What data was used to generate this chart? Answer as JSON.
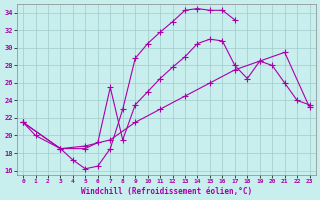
{
  "xlabel": "Windchill (Refroidissement éolien,°C)",
  "bg_color": "#c8eeee",
  "grid_color": "#a0cccc",
  "line_color": "#aa00aa",
  "xlim": [
    -0.5,
    23.5
  ],
  "ylim": [
    15.5,
    35.0
  ],
  "xticks": [
    0,
    1,
    2,
    3,
    4,
    5,
    6,
    7,
    8,
    9,
    10,
    11,
    12,
    13,
    14,
    15,
    16,
    17,
    18,
    19,
    20,
    21,
    22,
    23
  ],
  "yticks": [
    16,
    18,
    20,
    22,
    24,
    26,
    28,
    30,
    32,
    34
  ],
  "curve1_x": [
    0,
    1,
    3,
    4,
    5,
    6,
    7,
    8,
    9,
    10,
    11,
    12,
    13,
    14,
    15,
    16,
    17
  ],
  "curve1_y": [
    21.5,
    20.0,
    18.5,
    17.2,
    16.2,
    16.5,
    18.5,
    23.0,
    28.8,
    30.5,
    31.8,
    33.0,
    34.3,
    34.5,
    34.3,
    34.3,
    33.2
  ],
  "curve2_x": [
    0,
    3,
    5,
    6,
    7,
    8,
    9,
    10,
    11,
    12,
    13,
    14,
    15,
    16,
    17,
    18,
    19,
    20,
    21,
    22,
    23
  ],
  "curve2_y": [
    21.5,
    18.5,
    18.5,
    19.2,
    25.5,
    19.5,
    23.5,
    25.0,
    26.5,
    27.8,
    29.0,
    30.5,
    31.0,
    30.8,
    28.0,
    26.5,
    28.5,
    28.0,
    26.0,
    24.0,
    23.5
  ],
  "curve3_x": [
    0,
    3,
    5,
    7,
    9,
    11,
    13,
    15,
    17,
    19,
    21,
    23
  ],
  "curve3_y": [
    21.5,
    18.5,
    18.8,
    19.5,
    21.5,
    23.0,
    24.5,
    26.0,
    27.5,
    28.5,
    29.5,
    23.2
  ]
}
